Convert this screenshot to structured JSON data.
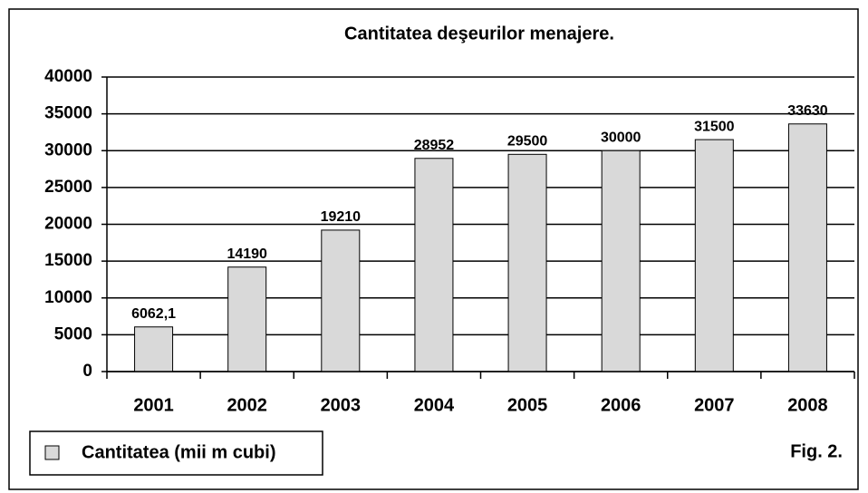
{
  "chart_data": {
    "type": "bar",
    "title": "Cantitatea deşeurilor menajere.",
    "annotation": "Fig. 2.",
    "categories": [
      "2001",
      "2002",
      "2003",
      "2004",
      "2005",
      "2006",
      "2007",
      "2008"
    ],
    "series": [
      {
        "name": "Cantitatea (mii m cubi)",
        "color": "#d9d9d9",
        "values": [
          6062.1,
          14190,
          19210,
          28952,
          29500,
          30000,
          31500,
          33630
        ],
        "value_labels": [
          "6062,1",
          "14190",
          "19210",
          "28952",
          "29500",
          "30000",
          "31500",
          "33630"
        ]
      }
    ],
    "ylim": [
      0,
      40000
    ],
    "yticks": [
      0,
      5000,
      10000,
      15000,
      20000,
      25000,
      30000,
      35000,
      40000
    ],
    "grid": true,
    "legend": "bottom-left"
  }
}
